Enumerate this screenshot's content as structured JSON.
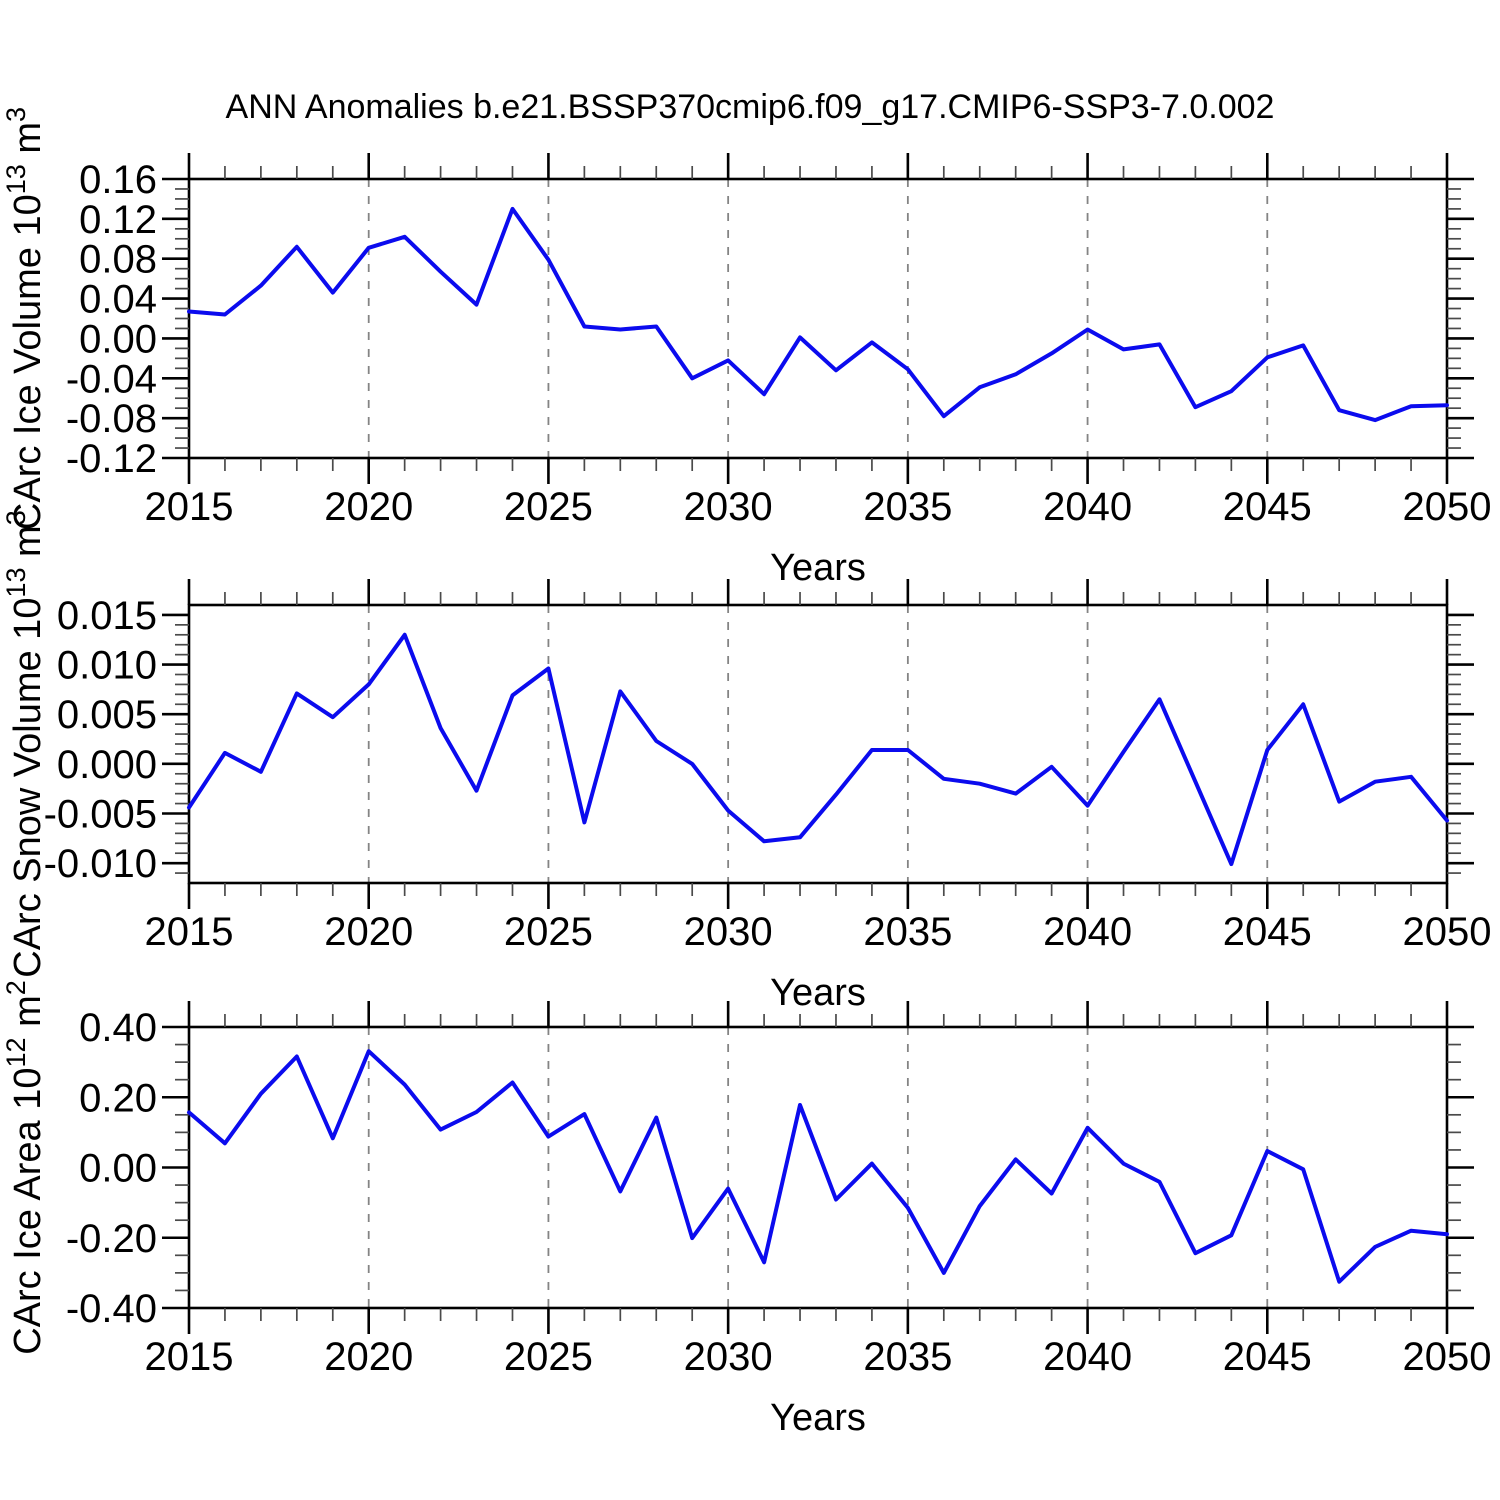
{
  "title": "ANN Anomalies b.e21.BSSP370cmip6.f09_g17.CMIP6-SSP3-7.0.002",
  "colors": {
    "line": "#0b0bee",
    "grid": "#848484",
    "axis": "#000000",
    "minor_tick": "#4a4a4a",
    "background": "#ffffff"
  },
  "x_axis": {
    "label": "Years",
    "min": 2015,
    "max": 2050,
    "major_ticks": [
      2015,
      2020,
      2025,
      2030,
      2035,
      2040,
      2045,
      2050
    ],
    "minor_step": 1,
    "gridlines_at": [
      2020,
      2025,
      2030,
      2035,
      2040,
      2045
    ]
  },
  "chart_data": [
    {
      "type": "line",
      "name": "carc-ice-volume",
      "title": "",
      "ylabel": "CArc Ice Volume 10¹³ m³",
      "ylabel_parts": [
        {
          "t": "CArc Ice Volume 10"
        },
        {
          "t": "13",
          "sup": true
        },
        {
          "t": " m"
        },
        {
          "t": "3",
          "sup": true
        }
      ],
      "xlabel": "Years",
      "ylim": [
        -0.12,
        0.16
      ],
      "yminor_step": 0.01,
      "yticks": [
        {
          "v": 0.16,
          "label": "0.16"
        },
        {
          "v": 0.12,
          "label": "0.12"
        },
        {
          "v": 0.08,
          "label": "0.08"
        },
        {
          "v": 0.04,
          "label": "0.04"
        },
        {
          "v": 0.0,
          "label": "0.00"
        },
        {
          "v": -0.04,
          "label": "-0.04"
        },
        {
          "v": -0.08,
          "label": "-0.08"
        },
        {
          "v": -0.12,
          "label": "-0.12"
        }
      ],
      "x": [
        2015,
        2016,
        2017,
        2018,
        2019,
        2020,
        2021,
        2022,
        2023,
        2024,
        2025,
        2026,
        2027,
        2028,
        2029,
        2030,
        2031,
        2032,
        2033,
        2034,
        2035,
        2036,
        2037,
        2038,
        2039,
        2040,
        2041,
        2042,
        2043,
        2044,
        2045,
        2046,
        2047,
        2048,
        2049,
        2050
      ],
      "values": [
        0.027,
        0.024,
        0.053,
        0.092,
        0.046,
        0.091,
        0.102,
        0.067,
        0.034,
        0.13,
        0.079,
        0.012,
        0.009,
        0.012,
        -0.04,
        -0.022,
        -0.056,
        0.001,
        -0.032,
        -0.004,
        -0.031,
        -0.078,
        -0.049,
        -0.036,
        -0.015,
        0.009,
        -0.011,
        -0.006,
        -0.069,
        -0.053,
        -0.019,
        -0.007,
        -0.072,
        -0.082,
        -0.068,
        -0.067
      ]
    },
    {
      "type": "line",
      "name": "carc-snow-volume",
      "title": "",
      "ylabel": "CArc Snow Volume 10¹³ m³",
      "ylabel_parts": [
        {
          "t": "CArc Snow Volume 10"
        },
        {
          "t": "13",
          "sup": true
        },
        {
          "t": " m"
        },
        {
          "t": "3",
          "sup": true
        }
      ],
      "xlabel": "Years",
      "ylim": [
        -0.012,
        0.016
      ],
      "yminor_step": 0.001,
      "yticks": [
        {
          "v": 0.015,
          "label": "0.015"
        },
        {
          "v": 0.01,
          "label": "0.010"
        },
        {
          "v": 0.005,
          "label": "0.005"
        },
        {
          "v": 0.0,
          "label": "0.000"
        },
        {
          "v": -0.005,
          "label": "-0.005"
        },
        {
          "v": -0.01,
          "label": "-0.010"
        }
      ],
      "x": [
        2015,
        2016,
        2017,
        2018,
        2019,
        2020,
        2021,
        2022,
        2023,
        2024,
        2025,
        2026,
        2027,
        2028,
        2029,
        2030,
        2031,
        2032,
        2033,
        2034,
        2035,
        2036,
        2037,
        2038,
        2039,
        2040,
        2041,
        2042,
        2043,
        2044,
        2045,
        2046,
        2047,
        2048,
        2049,
        2050
      ],
      "values": [
        -0.0044,
        0.0011,
        -0.0008,
        0.0071,
        0.0047,
        0.008,
        0.013,
        0.0036,
        -0.0027,
        0.0069,
        0.0096,
        -0.0059,
        0.0073,
        0.0023,
        0.0,
        -0.0047,
        -0.0078,
        -0.0074,
        -0.0031,
        0.0014,
        0.0014,
        -0.0015,
        -0.002,
        -0.003,
        -0.0003,
        -0.0042,
        0.0012,
        0.0065,
        -0.0018,
        -0.0101,
        0.0014,
        0.006,
        -0.0038,
        -0.0018,
        -0.0013,
        -0.0057
      ]
    },
    {
      "type": "line",
      "name": "carc-ice-area",
      "title": "",
      "ylabel": "CArc Ice Area 10¹² m²",
      "ylabel_parts": [
        {
          "t": "CArc Ice Area 10"
        },
        {
          "t": "12",
          "sup": true
        },
        {
          "t": " m"
        },
        {
          "t": "2",
          "sup": true
        }
      ],
      "xlabel": "Years",
      "ylim": [
        -0.4,
        0.4
      ],
      "yminor_step": 0.05,
      "yticks": [
        {
          "v": 0.4,
          "label": "0.40"
        },
        {
          "v": 0.2,
          "label": "0.20"
        },
        {
          "v": 0.0,
          "label": "0.00"
        },
        {
          "v": -0.2,
          "label": "-0.20"
        },
        {
          "v": -0.4,
          "label": "-0.40"
        }
      ],
      "x": [
        2015,
        2016,
        2017,
        2018,
        2019,
        2020,
        2021,
        2022,
        2023,
        2024,
        2025,
        2026,
        2027,
        2028,
        2029,
        2030,
        2031,
        2032,
        2033,
        2034,
        2035,
        2036,
        2037,
        2038,
        2039,
        2040,
        2041,
        2042,
        2043,
        2044,
        2045,
        2046,
        2047,
        2048,
        2049,
        2050
      ],
      "values": [
        0.157,
        0.069,
        0.21,
        0.316,
        0.083,
        0.331,
        0.236,
        0.108,
        0.158,
        0.242,
        0.088,
        0.152,
        -0.068,
        0.142,
        -0.201,
        -0.06,
        -0.27,
        0.178,
        -0.091,
        0.011,
        -0.115,
        -0.3,
        -0.11,
        0.023,
        -0.074,
        0.113,
        0.011,
        -0.041,
        -0.244,
        -0.193,
        0.047,
        -0.005,
        -0.325,
        -0.226,
        -0.18,
        -0.19
      ]
    }
  ]
}
